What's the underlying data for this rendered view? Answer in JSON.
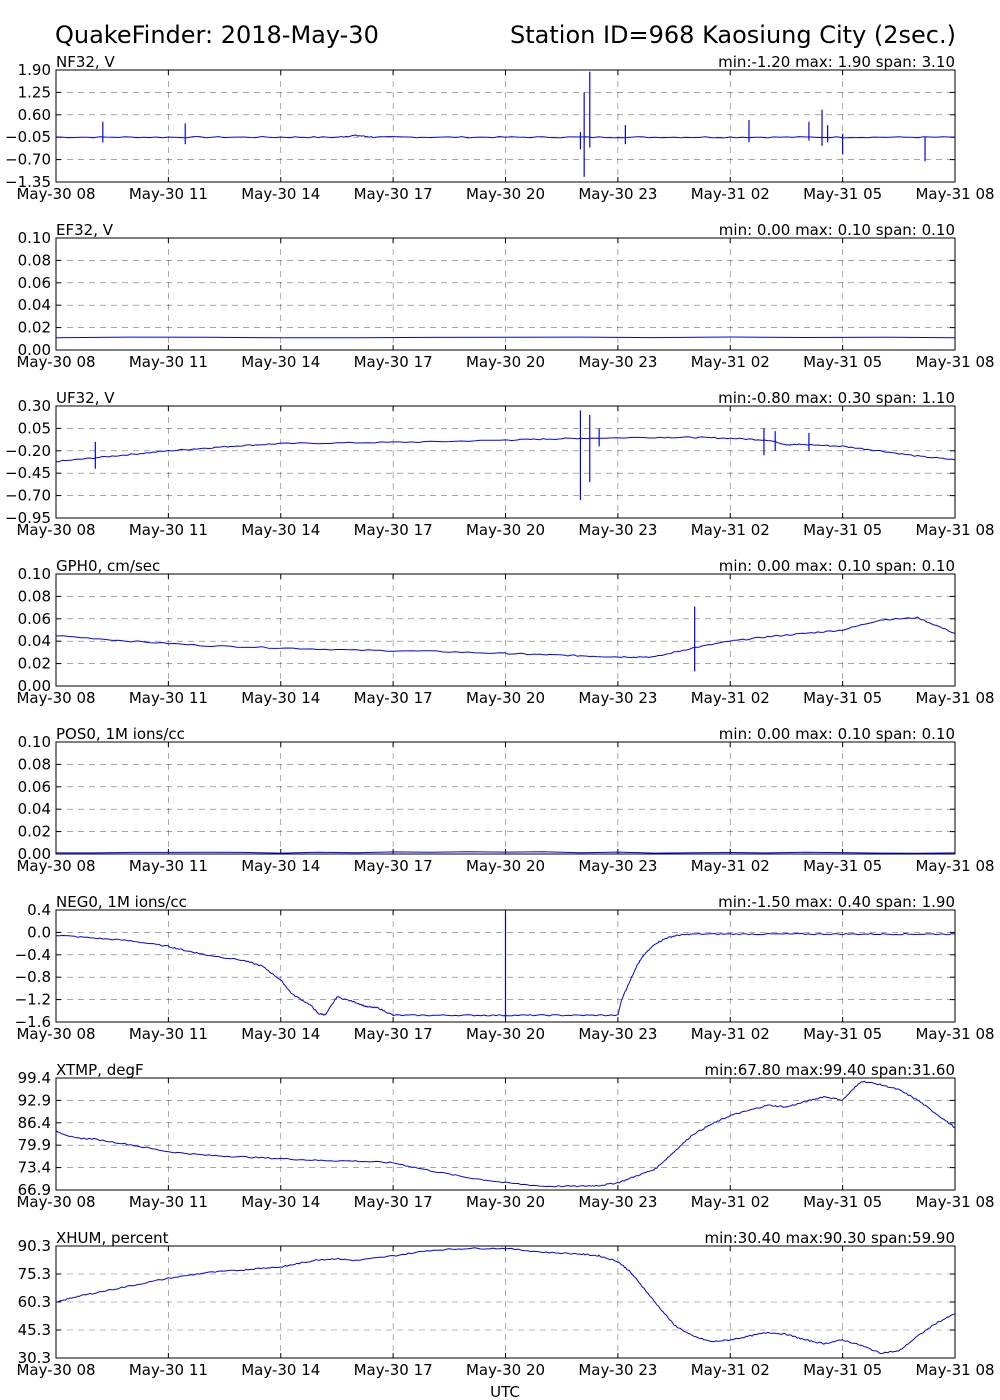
{
  "header": {
    "title_left": "QuakeFinder: 2018-May-30",
    "title_right": "Station ID=968  Kaosiung City (2sec.)"
  },
  "xaxis": {
    "label": "UTC",
    "ticks": [
      "May-30 08",
      "May-30 11",
      "May-30 14",
      "May-30 17",
      "May-30 20",
      "May-30 23",
      "May-31 02",
      "May-31 05",
      "May-31 08"
    ],
    "range_hours": [
      0,
      24
    ]
  },
  "chart_data": [
    {
      "type": "line",
      "name": "NF32, V",
      "stats": "min:-1.20 max: 1.90 span: 3.10",
      "yticks": [
        "1.90",
        "1.25",
        "0.60",
        "−0.05",
        "−0.70",
        "−1.35"
      ],
      "ylim": [
        -1.35,
        1.9
      ],
      "x": [
        0,
        2,
        4,
        6,
        7.5,
        8,
        8.5,
        10,
        12,
        14,
        16,
        18,
        20,
        22,
        24
      ],
      "y": [
        -0.05,
        -0.05,
        -0.05,
        -0.05,
        -0.05,
        0.0,
        -0.05,
        -0.05,
        -0.05,
        -0.05,
        -0.05,
        -0.05,
        -0.05,
        -0.05,
        -0.05
      ],
      "spikes": [
        [
          1.25,
          -0.2,
          0.4
        ],
        [
          3.45,
          -0.25,
          0.35
        ],
        [
          14.0,
          -0.4,
          0.1
        ],
        [
          14.1,
          -1.2,
          1.25
        ],
        [
          14.25,
          -0.35,
          1.85
        ],
        [
          15.2,
          -0.25,
          0.3
        ],
        [
          18.5,
          -0.2,
          0.45
        ],
        [
          20.1,
          -0.15,
          0.4
        ],
        [
          20.45,
          -0.3,
          0.75
        ],
        [
          20.6,
          -0.2,
          0.3
        ],
        [
          21.0,
          -0.55,
          0.05
        ],
        [
          23.2,
          -0.75,
          -0.05
        ]
      ]
    },
    {
      "type": "line",
      "name": "EF32, V",
      "stats": "min: 0.00 max: 0.10 span: 0.10",
      "yticks": [
        "0.10",
        "0.08",
        "0.06",
        "0.04",
        "0.02",
        "0.00"
      ],
      "ylim": [
        0,
        0.1
      ],
      "x": [
        0,
        24
      ],
      "y": [
        0.011,
        0.011
      ],
      "spikes": []
    },
    {
      "type": "line",
      "name": "UF32, V",
      "stats": "min:-0.80 max: 0.30 span: 1.10",
      "yticks": [
        "0.30",
        "0.05",
        "−0.20",
        "−0.45",
        "−0.70",
        "−0.95"
      ],
      "ylim": [
        -0.95,
        0.3
      ],
      "x": [
        0,
        1,
        2,
        3,
        4,
        5,
        6,
        8,
        10,
        12,
        13,
        14,
        16,
        17,
        18,
        19,
        19.5,
        20,
        21,
        22,
        23,
        24
      ],
      "y": [
        -0.32,
        -0.28,
        -0.24,
        -0.2,
        -0.17,
        -0.14,
        -0.12,
        -0.11,
        -0.1,
        -0.08,
        -0.07,
        -0.06,
        -0.05,
        -0.05,
        -0.06,
        -0.08,
        -0.13,
        -0.13,
        -0.15,
        -0.2,
        -0.26,
        -0.3
      ],
      "spikes": [
        [
          1.05,
          -0.4,
          -0.1
        ],
        [
          14.0,
          -0.75,
          0.25
        ],
        [
          14.25,
          -0.55,
          0.2
        ],
        [
          14.5,
          -0.15,
          0.05
        ],
        [
          18.9,
          -0.25,
          0.05
        ],
        [
          19.2,
          -0.2,
          0.02
        ],
        [
          20.1,
          -0.2,
          0.0
        ]
      ]
    },
    {
      "type": "line",
      "name": "GPH0, cm/sec",
      "stats": "min: 0.00 max: 0.10 span: 0.10",
      "yticks": [
        "0.10",
        "0.08",
        "0.06",
        "0.04",
        "0.02",
        "0.00"
      ],
      "ylim": [
        0,
        0.1
      ],
      "x": [
        0,
        2,
        4,
        6,
        8,
        10,
        12,
        13,
        14,
        15,
        16,
        17,
        18,
        19,
        20,
        21,
        22,
        23,
        24
      ],
      "y": [
        0.045,
        0.04,
        0.036,
        0.034,
        0.032,
        0.031,
        0.029,
        0.028,
        0.027,
        0.026,
        0.026,
        0.034,
        0.04,
        0.044,
        0.047,
        0.05,
        0.059,
        0.061,
        0.047
      ],
      "spikes": [
        [
          17.05,
          0.013,
          0.071
        ]
      ]
    },
    {
      "type": "line",
      "name": "POS0, 1M ions/cc",
      "stats": "min: 0.00 max: 0.10 span: 0.10",
      "yticks": [
        "0.10",
        "0.08",
        "0.06",
        "0.04",
        "0.02",
        "0.00"
      ],
      "ylim": [
        0,
        0.1
      ],
      "x": [
        0,
        12,
        24
      ],
      "y": [
        0.001,
        0.0015,
        0.001
      ],
      "spikes": []
    },
    {
      "type": "line",
      "name": "NEG0, 1M ions/cc",
      "stats": "min:-1.50 max: 0.40 span: 1.90",
      "yticks": [
        "0.4",
        "0.0",
        "−0.4",
        "−0.8",
        "−1.2",
        "−1.6"
      ],
      "ylim": [
        -1.6,
        0.4
      ],
      "x": [
        0,
        1,
        2,
        3,
        3.5,
        4,
        5,
        5.5,
        6,
        6.3,
        6.8,
        7,
        7.2,
        7.5,
        8,
        8.3,
        8.6,
        9,
        10,
        11,
        12,
        13,
        14,
        15,
        15.1,
        15.3,
        15.5,
        15.7,
        16,
        16.3,
        16.6,
        17,
        18,
        19,
        20,
        21,
        22,
        23,
        24
      ],
      "y": [
        -0.05,
        -0.1,
        -0.15,
        -0.25,
        -0.33,
        -0.4,
        -0.5,
        -0.6,
        -0.85,
        -1.1,
        -1.3,
        -1.45,
        -1.47,
        -1.15,
        -1.25,
        -1.33,
        -1.35,
        -1.48,
        -1.48,
        -1.48,
        -1.48,
        -1.48,
        -1.48,
        -1.48,
        -1.2,
        -0.9,
        -0.6,
        -0.4,
        -0.2,
        -0.1,
        -0.05,
        -0.03,
        -0.03,
        -0.03,
        -0.03,
        -0.03,
        -0.03,
        -0.03,
        -0.03
      ],
      "spikes": [
        [
          12.0,
          -1.55,
          0.35
        ]
      ]
    },
    {
      "type": "line",
      "name": "XTMP, degF",
      "stats": "min:67.80 max:99.40 span:31.60",
      "yticks": [
        "99.4",
        "92.9",
        "86.4",
        "79.9",
        "73.4",
        "66.9"
      ],
      "ylim": [
        66.9,
        99.4
      ],
      "x": [
        0,
        0.5,
        1,
        2,
        3,
        4,
        5,
        6,
        7,
        8,
        9,
        10,
        11,
        12,
        13,
        14,
        14.5,
        15,
        15.5,
        16,
        16.5,
        17,
        17.5,
        18,
        18.5,
        19,
        19.5,
        20,
        20.5,
        21,
        21.5,
        22,
        22.5,
        23,
        23.5,
        24
      ],
      "y": [
        84,
        82,
        81.7,
        80,
        78,
        77,
        76.5,
        76,
        75.5,
        75.3,
        74.8,
        72.5,
        70.5,
        69,
        68,
        68,
        68.2,
        69,
        71,
        73,
        78,
        83,
        86,
        88.5,
        90,
        91.5,
        91,
        92.5,
        94,
        93,
        98.5,
        97.5,
        96,
        93,
        89,
        85
      ]
    },
    {
      "type": "line",
      "name": "XHUM, percent",
      "stats": "min:30.40 max:90.30 span:59.90",
      "yticks": [
        "90.3",
        "75.3",
        "60.3",
        "45.3",
        "30.3"
      ],
      "ylim": [
        30.3,
        90.3
      ],
      "x": [
        0,
        0.5,
        1,
        2,
        3,
        4,
        5,
        5.5,
        6,
        6.5,
        7,
        7.5,
        8,
        9,
        10,
        11,
        12,
        13,
        14,
        14.5,
        15,
        15.3,
        15.6,
        16,
        16.5,
        17,
        17.5,
        18,
        18.5,
        19,
        19.5,
        20,
        20.5,
        21,
        21.5,
        22,
        22.5,
        23,
        23.5,
        24
      ],
      "y": [
        60,
        63,
        65,
        69,
        73,
        76,
        77.5,
        78.5,
        79,
        81,
        83,
        83.5,
        82.5,
        85,
        88,
        89,
        89,
        87,
        86,
        85,
        82,
        77,
        70,
        60,
        48,
        42,
        39,
        40,
        42,
        44,
        43,
        40,
        38,
        40,
        37,
        33,
        34,
        42,
        49,
        54
      ]
    }
  ]
}
